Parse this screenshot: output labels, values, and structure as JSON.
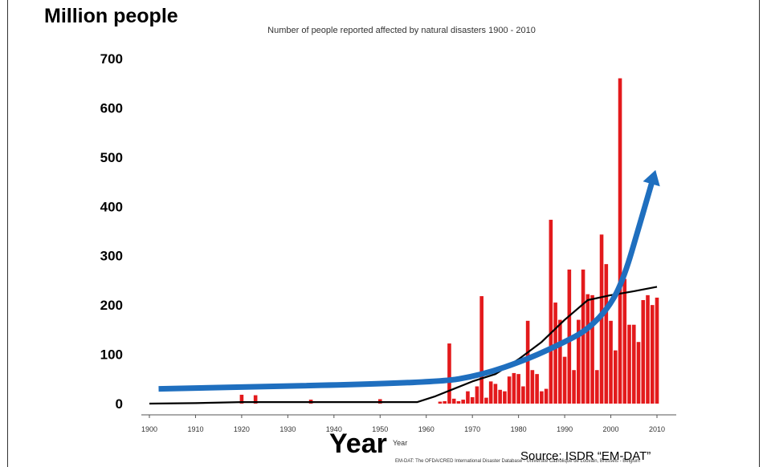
{
  "chart_data": {
    "type": "bar",
    "title": "Number of people reported affected by natural disasters 1900 - 2010",
    "ylabel": "Million people",
    "xlabel": "Year",
    "xlabel_small": "Year",
    "source": "Source: ISDR “EM-DAT”",
    "footnote": "EM-DAT: The OFDA/CRED International Disaster Database - Université Catholique de Louvain, Brussels - Belgium",
    "xlim": [
      1900,
      2014
    ],
    "ylim": [
      0,
      700
    ],
    "x_ticks": [
      1900,
      1910,
      1920,
      1930,
      1940,
      1950,
      1960,
      1970,
      1980,
      1990,
      2000,
      2010
    ],
    "y_ticks": [
      0,
      100,
      200,
      300,
      400,
      500,
      600,
      700
    ],
    "bar_color": "#e31a1c",
    "trend_color": "#000000",
    "arrow_color": "#1f6fbf",
    "bars": [
      {
        "year": 1920,
        "value": 18
      },
      {
        "year": 1923,
        "value": 17
      },
      {
        "year": 1935,
        "value": 8
      },
      {
        "year": 1950,
        "value": 9
      },
      {
        "year": 1963,
        "value": 4
      },
      {
        "year": 1964,
        "value": 5
      },
      {
        "year": 1965,
        "value": 122
      },
      {
        "year": 1966,
        "value": 10
      },
      {
        "year": 1967,
        "value": 5
      },
      {
        "year": 1968,
        "value": 8
      },
      {
        "year": 1969,
        "value": 25
      },
      {
        "year": 1970,
        "value": 13
      },
      {
        "year": 1971,
        "value": 35
      },
      {
        "year": 1972,
        "value": 218
      },
      {
        "year": 1973,
        "value": 12
      },
      {
        "year": 1974,
        "value": 45
      },
      {
        "year": 1975,
        "value": 40
      },
      {
        "year": 1976,
        "value": 28
      },
      {
        "year": 1977,
        "value": 25
      },
      {
        "year": 1978,
        "value": 55
      },
      {
        "year": 1979,
        "value": 62
      },
      {
        "year": 1980,
        "value": 60
      },
      {
        "year": 1981,
        "value": 35
      },
      {
        "year": 1982,
        "value": 168
      },
      {
        "year": 1983,
        "value": 68
      },
      {
        "year": 1984,
        "value": 60
      },
      {
        "year": 1985,
        "value": 25
      },
      {
        "year": 1986,
        "value": 30
      },
      {
        "year": 1987,
        "value": 373
      },
      {
        "year": 1988,
        "value": 205
      },
      {
        "year": 1989,
        "value": 170
      },
      {
        "year": 1990,
        "value": 95
      },
      {
        "year": 1991,
        "value": 272
      },
      {
        "year": 1992,
        "value": 68
      },
      {
        "year": 1993,
        "value": 170
      },
      {
        "year": 1994,
        "value": 272
      },
      {
        "year": 1995,
        "value": 222
      },
      {
        "year": 1996,
        "value": 220
      },
      {
        "year": 1997,
        "value": 68
      },
      {
        "year": 1998,
        "value": 343
      },
      {
        "year": 1999,
        "value": 283
      },
      {
        "year": 2000,
        "value": 168
      },
      {
        "year": 2001,
        "value": 108
      },
      {
        "year": 2002,
        "value": 660
      },
      {
        "year": 2003,
        "value": 253
      },
      {
        "year": 2004,
        "value": 160
      },
      {
        "year": 2005,
        "value": 160
      },
      {
        "year": 2006,
        "value": 125
      },
      {
        "year": 2007,
        "value": 210
      },
      {
        "year": 2008,
        "value": 220
      },
      {
        "year": 2009,
        "value": 200
      },
      {
        "year": 2010,
        "value": 215
      }
    ],
    "trend": [
      [
        1900,
        0
      ],
      [
        1910,
        1
      ],
      [
        1920,
        3
      ],
      [
        1930,
        3
      ],
      [
        1940,
        3
      ],
      [
        1950,
        3
      ],
      [
        1958,
        3
      ],
      [
        1962,
        15
      ],
      [
        1966,
        30
      ],
      [
        1970,
        45
      ],
      [
        1975,
        60
      ],
      [
        1980,
        90
      ],
      [
        1985,
        125
      ],
      [
        1990,
        170
      ],
      [
        1995,
        210
      ],
      [
        2000,
        220
      ],
      [
        2005,
        228
      ],
      [
        2010,
        237
      ]
    ],
    "arrow": [
      [
        1902,
        30
      ],
      [
        1962,
        42
      ],
      [
        1972,
        58
      ],
      [
        1982,
        90
      ],
      [
        1990,
        125
      ],
      [
        1995,
        150
      ],
      [
        2000,
        200
      ],
      [
        2003,
        260
      ],
      [
        2006,
        355
      ],
      [
        2008,
        420
      ],
      [
        2009,
        452
      ]
    ]
  }
}
